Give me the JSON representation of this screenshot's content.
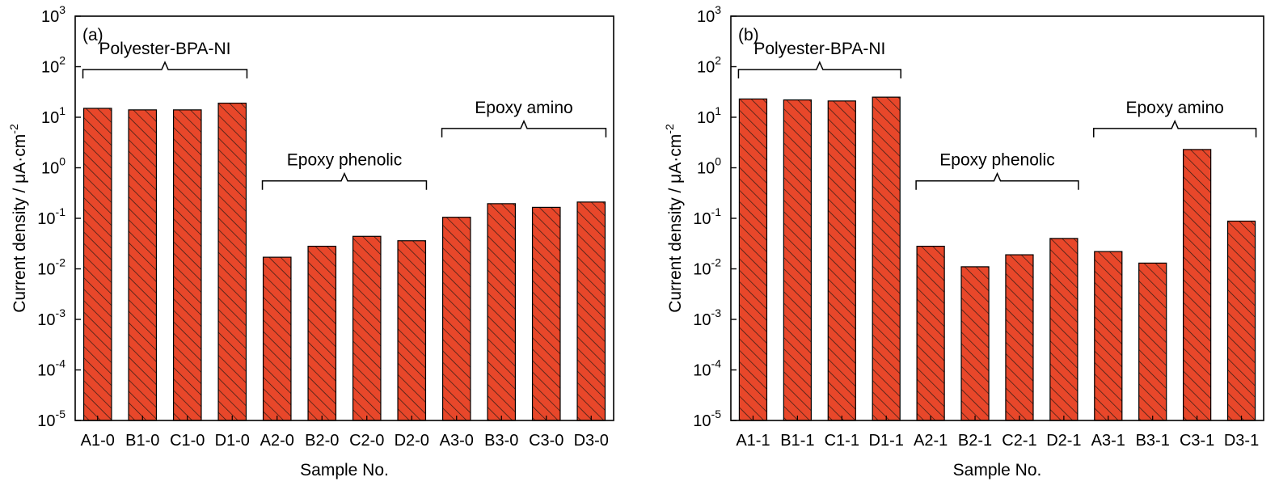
{
  "figure": {
    "bar_color": "#e8472a",
    "hatch_color": "#2a1a14",
    "ytick_base": "10",
    "ytick_exponents": [
      "-5",
      "-4",
      "-3",
      "-2",
      "-1",
      "0",
      "1",
      "2",
      "3"
    ]
  },
  "chart_data": [
    {
      "type": "bar",
      "panel_label": "(a)",
      "xlabel": "Sample No.",
      "ylabel": "Current density / µA·cm⁻²",
      "ylabel_main": "Current density / ",
      "ylabel_mu": "μ",
      "ylabel_unit": "A·cm",
      "ylabel_sup": "-2",
      "yscale": "log",
      "ylim": [
        1e-05,
        1000
      ],
      "categories": [
        "A1-0",
        "B1-0",
        "C1-0",
        "D1-0",
        "A2-0",
        "B2-0",
        "C2-0",
        "D2-0",
        "A3-0",
        "B3-0",
        "C3-0",
        "D3-0"
      ],
      "values": [
        15,
        14,
        14,
        19,
        0.017,
        0.028,
        0.044,
        0.036,
        0.105,
        0.195,
        0.165,
        0.21
      ],
      "groups": [
        {
          "label": "Polyester-BPA-NI",
          "start": 0,
          "end": 3,
          "level": 88
        },
        {
          "label": "Epoxy phenolic",
          "start": 4,
          "end": 7,
          "level": 0.55
        },
        {
          "label": "Epoxy amino",
          "start": 8,
          "end": 11,
          "level": 6
        }
      ]
    },
    {
      "type": "bar",
      "panel_label": "(b)",
      "xlabel": "Sample No.",
      "ylabel": "Current density / µA·cm⁻²",
      "ylabel_main": "Current density / ",
      "ylabel_mu": "μ",
      "ylabel_unit": "A·cm",
      "ylabel_sup": "-2",
      "yscale": "log",
      "ylim": [
        1e-05,
        1000
      ],
      "categories": [
        "A1-1",
        "B1-1",
        "C1-1",
        "D1-1",
        "A2-1",
        "B2-1",
        "C2-1",
        "D2-1",
        "A3-1",
        "B3-1",
        "C3-1",
        "D3-1"
      ],
      "values": [
        23,
        22,
        21,
        25,
        0.028,
        0.011,
        0.019,
        0.04,
        0.022,
        0.013,
        2.3,
        0.088
      ],
      "groups": [
        {
          "label": "Polyester-BPA-NI",
          "start": 0,
          "end": 3,
          "level": 88
        },
        {
          "label": "Epoxy phenolic",
          "start": 4,
          "end": 7,
          "level": 0.55
        },
        {
          "label": "Epoxy amino",
          "start": 8,
          "end": 11,
          "level": 6
        }
      ]
    }
  ]
}
